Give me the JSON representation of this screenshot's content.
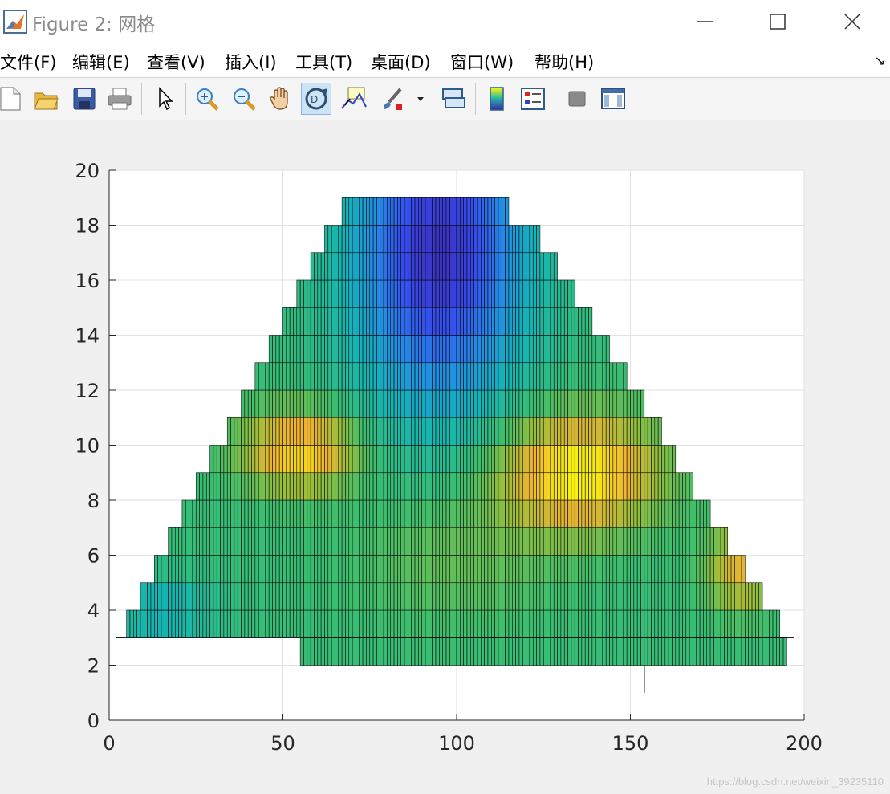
{
  "window": {
    "title": "Figure 2: 网格",
    "controls": [
      "minimize",
      "maximize",
      "close"
    ]
  },
  "menu": {
    "items": [
      "文件(F)",
      "编辑(E)",
      "查看(V)",
      "插入(I)",
      "工具(T)",
      "桌面(D)",
      "窗口(W)",
      "帮助(H)"
    ]
  },
  "toolbar": {
    "buttons": [
      "new-figure-icon",
      "open-file-icon",
      "save-icon",
      "print-icon",
      "pointer-icon",
      "zoom-in-icon",
      "zoom-out-icon",
      "pan-hand-icon",
      "rotate-3d-icon",
      "data-cursor-icon",
      "brush-icon",
      "link-plot-icon",
      "colorbar-icon",
      "legend-icon",
      "hide-plot-tools-icon",
      "show-plot-tools-icon"
    ],
    "active": "rotate-3d-icon"
  },
  "watermark": "https://blog.csdn.net/weixin_39235110",
  "chart_data": {
    "type": "heatmap",
    "title": "",
    "xlabel": "",
    "ylabel": "",
    "xlim": [
      0,
      200
    ],
    "ylim": [
      0,
      20
    ],
    "xticks": [
      0,
      50,
      100,
      150,
      200
    ],
    "yticks": [
      0,
      2,
      4,
      6,
      8,
      10,
      12,
      14,
      16,
      18,
      20
    ],
    "grid": true,
    "colormap": "parula",
    "mesh": {
      "cell_width": 1,
      "row_ranges": [
        {
          "y": [
            2,
            3
          ],
          "x": [
            55,
            195
          ]
        },
        {
          "y": [
            3,
            4
          ],
          "x": [
            5,
            193
          ]
        },
        {
          "y": [
            4,
            5
          ],
          "x": [
            9,
            188
          ]
        },
        {
          "y": [
            5,
            6
          ],
          "x": [
            13,
            183
          ]
        },
        {
          "y": [
            6,
            7
          ],
          "x": [
            17,
            178
          ]
        },
        {
          "y": [
            7,
            8
          ],
          "x": [
            21,
            173
          ]
        },
        {
          "y": [
            8,
            9
          ],
          "x": [
            25,
            168
          ]
        },
        {
          "y": [
            9,
            10
          ],
          "x": [
            29,
            163
          ]
        },
        {
          "y": [
            10,
            11
          ],
          "x": [
            34,
            159
          ]
        },
        {
          "y": [
            11,
            12
          ],
          "x": [
            38,
            154
          ]
        },
        {
          "y": [
            12,
            13
          ],
          "x": [
            42,
            149
          ]
        },
        {
          "y": [
            13,
            14
          ],
          "x": [
            46,
            144
          ]
        },
        {
          "y": [
            14,
            15
          ],
          "x": [
            50,
            139
          ]
        },
        {
          "y": [
            15,
            16
          ],
          "x": [
            54,
            134
          ]
        },
        {
          "y": [
            16,
            17
          ],
          "x": [
            58,
            129
          ]
        },
        {
          "y": [
            17,
            18
          ],
          "x": [
            62,
            124
          ]
        },
        {
          "y": [
            18,
            19
          ],
          "x": [
            67,
            115
          ]
        }
      ],
      "extra_lines": [
        {
          "x": [
            2,
            197
          ],
          "y": [
            3,
            3
          ]
        },
        {
          "x": [
            154,
            154
          ],
          "y": [
            1,
            2
          ]
        }
      ]
    }
  }
}
